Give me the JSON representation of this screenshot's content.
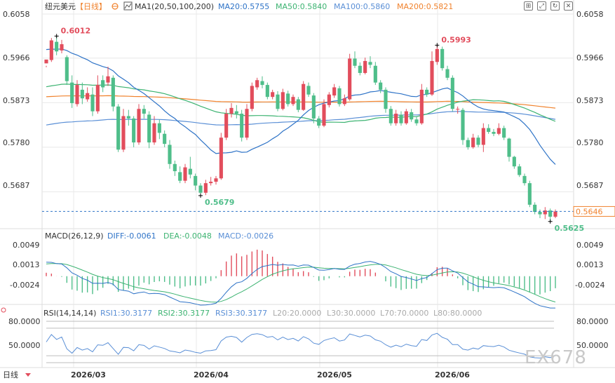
{
  "header": {
    "pair": "纽元美元",
    "period": "【日线】",
    "indicator": "MA1(20,50,100,200)",
    "ma20": "MA20:0.5755",
    "ma50": "MA50:0.5840",
    "ma100": "MA100:0.5860",
    "ma200": "MA200:0.5821"
  },
  "colors": {
    "up": "#e24d5c",
    "down": "#4fbe8a",
    "ma20": "#2e73c7",
    "ma50": "#3cb371",
    "ma100": "#5a8fd6",
    "ma200": "#f0822d",
    "grid": "#e8e8e8",
    "axis_text": "#333333",
    "current_price_box": "#f0822d"
  },
  "icons": [
    "settings-icon",
    "chart-icon",
    "expand-icon",
    "close-icon"
  ],
  "price_axis": {
    "ticks": [
      "0.6058",
      "0.5966",
      "0.5873",
      "0.5780",
      "0.5687"
    ],
    "current": "0.5646"
  },
  "annotations": {
    "high1": "0.6012",
    "high2": "0.5993",
    "low1": "0.5679",
    "low2": "0.5625"
  },
  "macd": {
    "title": "MACD(26,12,9)",
    "diff": "DIFF:-0.0061",
    "dea": "DEA:-0.0048",
    "macd": "MACD:-0.0026",
    "ticks": [
      "0.0049",
      "0.0013",
      "-0.0024"
    ]
  },
  "rsi": {
    "title": "RSI(14,14,14)",
    "rsi1": "RSI1:30.3177",
    "rsi2": "RSI2:30.3177",
    "rsi3": "RSI3:30.3177",
    "l20": "L20:20.0000",
    "l30": "L30:30.0000",
    "l70": "L70:70.0000",
    "l80": "L80:80.0000",
    "ticks": [
      "80.0000",
      "50.0000"
    ]
  },
  "x_axis": {
    "ticks": [
      "2026/03",
      "2026/04",
      "2026/05",
      "2026/06"
    ]
  },
  "footer": {
    "period_label": "日线"
  },
  "watermark": "EX678",
  "chart_data": {
    "type": "candlestick",
    "candles": [
      [
        0.5955,
        0.5963,
        0.595,
        0.5947
      ],
      [
        0.5962,
        0.6003,
        0.6008,
        0.5958
      ],
      [
        0.6,
        0.598,
        0.6012,
        0.5972
      ],
      [
        0.5982,
        0.5995,
        0.6004,
        0.5976
      ],
      [
        0.5968,
        0.5918,
        0.5972,
        0.591
      ],
      [
        0.5915,
        0.5872,
        0.593,
        0.5862
      ],
      [
        0.587,
        0.591,
        0.592,
        0.5865
      ],
      [
        0.59,
        0.5882,
        0.5915,
        0.587
      ],
      [
        0.588,
        0.5893,
        0.5905,
        0.5875
      ],
      [
        0.589,
        0.5855,
        0.5905,
        0.5845
      ],
      [
        0.5855,
        0.591,
        0.593,
        0.585
      ],
      [
        0.592,
        0.5905,
        0.593,
        0.5895
      ],
      [
        0.5915,
        0.5928,
        0.5948,
        0.5908
      ],
      [
        0.5925,
        0.5865,
        0.593,
        0.5855
      ],
      [
        0.5865,
        0.5775,
        0.587,
        0.577
      ],
      [
        0.5775,
        0.5845,
        0.586,
        0.577
      ],
      [
        0.5845,
        0.584,
        0.5858,
        0.5825
      ],
      [
        0.584,
        0.579,
        0.5845,
        0.578
      ],
      [
        0.579,
        0.586,
        0.587,
        0.5785
      ],
      [
        0.586,
        0.585,
        0.5868,
        0.584
      ],
      [
        0.5848,
        0.579,
        0.5855,
        0.5778
      ],
      [
        0.579,
        0.583,
        0.5845,
        0.5785
      ],
      [
        0.583,
        0.581,
        0.5838,
        0.5797
      ],
      [
        0.5808,
        0.5787,
        0.5815,
        0.578
      ],
      [
        0.5785,
        0.5745,
        0.5795,
        0.5735
      ],
      [
        0.5745,
        0.573,
        0.5752,
        0.572
      ],
      [
        0.5728,
        0.571,
        0.574,
        0.5705
      ],
      [
        0.571,
        0.5738,
        0.5745,
        0.5705
      ],
      [
        0.5735,
        0.5723,
        0.576,
        0.5715
      ],
      [
        0.572,
        0.57,
        0.5725,
        0.569
      ],
      [
        0.57,
        0.5685,
        0.5705,
        0.5679
      ],
      [
        0.5685,
        0.5705,
        0.5712,
        0.568
      ],
      [
        0.5705,
        0.5708,
        0.5718,
        0.57
      ],
      [
        0.5708,
        0.5715,
        0.572,
        0.5702
      ],
      [
        0.5715,
        0.58,
        0.581,
        0.5712
      ],
      [
        0.58,
        0.585,
        0.586,
        0.5795
      ],
      [
        0.585,
        0.5862,
        0.5872,
        0.5842
      ],
      [
        0.5855,
        0.585,
        0.5868,
        0.584
      ],
      [
        0.585,
        0.58,
        0.5858,
        0.5792
      ],
      [
        0.58,
        0.586,
        0.587,
        0.5795
      ],
      [
        0.586,
        0.5908,
        0.5915,
        0.5855
      ],
      [
        0.5905,
        0.592,
        0.5925,
        0.59
      ],
      [
        0.5918,
        0.591,
        0.5928,
        0.5903
      ],
      [
        0.591,
        0.5885,
        0.5915,
        0.588
      ],
      [
        0.5885,
        0.5895,
        0.59,
        0.588
      ],
      [
        0.589,
        0.586,
        0.5897,
        0.5855
      ],
      [
        0.586,
        0.5895,
        0.5902,
        0.5857
      ],
      [
        0.5892,
        0.587,
        0.5898,
        0.5865
      ],
      [
        0.587,
        0.5885,
        0.589,
        0.5866
      ],
      [
        0.588,
        0.5858,
        0.5885,
        0.5853
      ],
      [
        0.5858,
        0.5912,
        0.5918,
        0.5856
      ],
      [
        0.5908,
        0.589,
        0.5915,
        0.5885
      ],
      [
        0.5888,
        0.584,
        0.5893,
        0.583
      ],
      [
        0.584,
        0.5825,
        0.5845,
        0.582
      ],
      [
        0.5825,
        0.587,
        0.588,
        0.5822
      ],
      [
        0.5868,
        0.589,
        0.5895,
        0.5863
      ],
      [
        0.5888,
        0.5905,
        0.5912,
        0.5883
      ],
      [
        0.5903,
        0.587,
        0.5908,
        0.5865
      ],
      [
        0.587,
        0.5882,
        0.589,
        0.5866
      ],
      [
        0.588,
        0.5965,
        0.5975,
        0.5877
      ],
      [
        0.5965,
        0.595,
        0.598,
        0.5945
      ],
      [
        0.595,
        0.5935,
        0.5957,
        0.593
      ],
      [
        0.5935,
        0.596,
        0.5967,
        0.5932
      ],
      [
        0.5958,
        0.5952,
        0.597,
        0.5945
      ],
      [
        0.595,
        0.5915,
        0.5958,
        0.591
      ],
      [
        0.5915,
        0.59,
        0.592,
        0.5893
      ],
      [
        0.59,
        0.586,
        0.5905,
        0.5852
      ],
      [
        0.586,
        0.583,
        0.5866,
        0.5825
      ],
      [
        0.583,
        0.585,
        0.5858,
        0.5825
      ],
      [
        0.5848,
        0.583,
        0.5855,
        0.5825
      ],
      [
        0.583,
        0.5855,
        0.586,
        0.5827
      ],
      [
        0.5853,
        0.5838,
        0.586,
        0.5833
      ],
      [
        0.5838,
        0.583,
        0.5845,
        0.5825
      ],
      [
        0.583,
        0.59,
        0.5912,
        0.5827
      ],
      [
        0.59,
        0.589,
        0.5905,
        0.5885
      ],
      [
        0.589,
        0.596,
        0.598,
        0.5887
      ],
      [
        0.5958,
        0.5985,
        0.5993,
        0.5952
      ],
      [
        0.5985,
        0.5945,
        0.599,
        0.594
      ],
      [
        0.5943,
        0.5925,
        0.595,
        0.592
      ],
      [
        0.5925,
        0.586,
        0.593,
        0.5855
      ],
      [
        0.586,
        0.586,
        0.5865,
        0.585
      ],
      [
        0.5858,
        0.5795,
        0.5862,
        0.5785
      ],
      [
        0.5795,
        0.578,
        0.58,
        0.5775
      ],
      [
        0.578,
        0.58,
        0.5808,
        0.5777
      ],
      [
        0.58,
        0.5785,
        0.5805,
        0.578
      ],
      [
        0.5785,
        0.582,
        0.583,
        0.577
      ],
      [
        0.582,
        0.5812,
        0.5828,
        0.5808
      ],
      [
        0.5812,
        0.5808,
        0.5818,
        0.5803
      ],
      [
        0.5808,
        0.582,
        0.583,
        0.5805
      ],
      [
        0.582,
        0.58,
        0.5825,
        0.5795
      ],
      [
        0.5798,
        0.576,
        0.58,
        0.575
      ],
      [
        0.576,
        0.574,
        0.5762,
        0.5735
      ],
      [
        0.574,
        0.5722,
        0.5745,
        0.5718
      ],
      [
        0.572,
        0.5705,
        0.5725,
        0.57
      ],
      [
        0.5705,
        0.566,
        0.571,
        0.5655
      ],
      [
        0.566,
        0.5645,
        0.5665,
        0.564
      ],
      [
        0.5645,
        0.564,
        0.565,
        0.5632
      ],
      [
        0.564,
        0.5648,
        0.5655,
        0.563
      ],
      [
        0.5648,
        0.5635,
        0.5652,
        0.5625
      ],
      [
        0.5635,
        0.5646,
        0.565,
        0.5632
      ]
    ],
    "price_range": [
      0.561,
      0.6058
    ],
    "macd_range": [
      -0.005,
      0.0065
    ],
    "rsi_range": [
      20,
      80
    ]
  }
}
